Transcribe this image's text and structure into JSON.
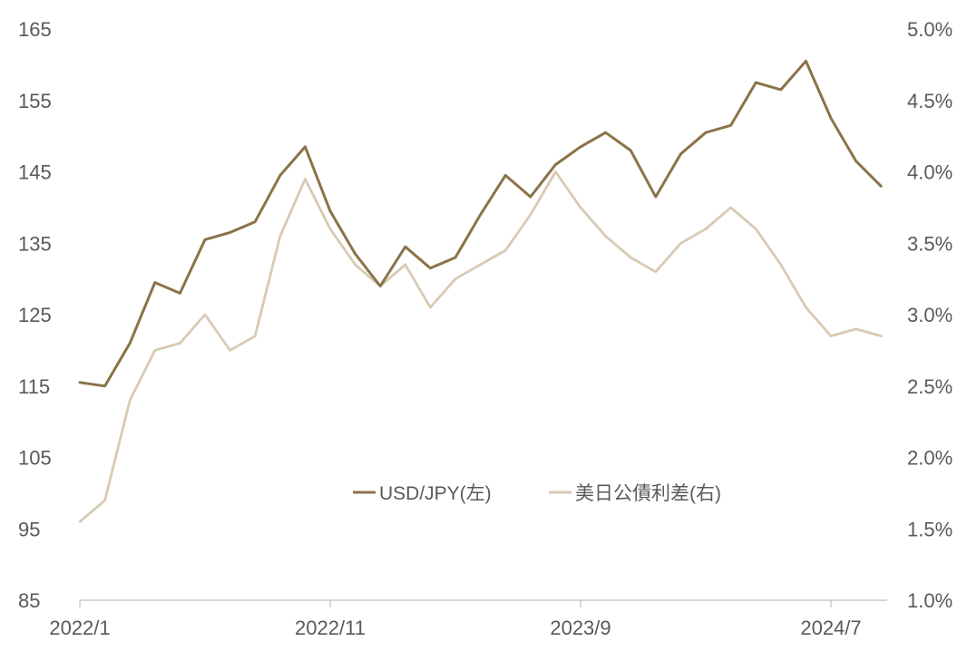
{
  "chart_data": {
    "type": "line",
    "x_axis": {
      "ticks": [
        "2022/1",
        "2022/11",
        "2023/9",
        "2024/7"
      ],
      "range": [
        "2022/1",
        "2024/10"
      ]
    },
    "y_left": {
      "ticks": [
        "165",
        "155",
        "145",
        "135",
        "125",
        "115",
        "105",
        "95",
        "85"
      ],
      "min": 85,
      "max": 165
    },
    "y_right": {
      "ticks": [
        "5.0%",
        "4.5%",
        "4.0%",
        "3.5%",
        "3.0%",
        "2.5%",
        "2.0%",
        "1.5%",
        "1.0%"
      ],
      "min": 1.0,
      "max": 5.0
    },
    "legend_position": "center",
    "grid": false,
    "series": [
      {
        "name": "USD/JPY(左)",
        "axis": "left",
        "color": "#8B7348",
        "points": [
          [
            "2022/1",
            115.5
          ],
          [
            "2022/2",
            115.0
          ],
          [
            "2022/3",
            121.0
          ],
          [
            "2022/4",
            129.5
          ],
          [
            "2022/5",
            128.0
          ],
          [
            "2022/6",
            135.5
          ],
          [
            "2022/7",
            136.5
          ],
          [
            "2022/8",
            138.0
          ],
          [
            "2022/9",
            144.5
          ],
          [
            "2022/10",
            148.5
          ],
          [
            "2022/11",
            139.5
          ],
          [
            "2022/12",
            133.5
          ],
          [
            "2023/1",
            129.0
          ],
          [
            "2023/2",
            134.5
          ],
          [
            "2023/3",
            131.5
          ],
          [
            "2023/4",
            133.0
          ],
          [
            "2023/5",
            139.0
          ],
          [
            "2023/6",
            144.5
          ],
          [
            "2023/7",
            141.5
          ],
          [
            "2023/8",
            146.0
          ],
          [
            "2023/9",
            148.5
          ],
          [
            "2023/10",
            150.5
          ],
          [
            "2023/11",
            148.0
          ],
          [
            "2023/12",
            141.5
          ],
          [
            "2024/1",
            147.5
          ],
          [
            "2024/2",
            150.5
          ],
          [
            "2024/3",
            151.5
          ],
          [
            "2024/4",
            157.5
          ],
          [
            "2024/5",
            156.5
          ],
          [
            "2024/6",
            160.5
          ],
          [
            "2024/7",
            152.5
          ],
          [
            "2024/8",
            146.5
          ],
          [
            "2024/9",
            143.0
          ]
        ]
      },
      {
        "name": "美日公債利差(右)",
        "axis": "right",
        "color": "#D8CAB4",
        "points": [
          [
            "2022/1",
            1.55
          ],
          [
            "2022/2",
            1.7
          ],
          [
            "2022/3",
            2.4
          ],
          [
            "2022/4",
            2.75
          ],
          [
            "2022/5",
            2.8
          ],
          [
            "2022/6",
            3.0
          ],
          [
            "2022/7",
            2.75
          ],
          [
            "2022/8",
            2.85
          ],
          [
            "2022/9",
            3.55
          ],
          [
            "2022/10",
            3.95
          ],
          [
            "2022/11",
            3.6
          ],
          [
            "2022/12",
            3.35
          ],
          [
            "2023/1",
            3.2
          ],
          [
            "2023/2",
            3.35
          ],
          [
            "2023/3",
            3.05
          ],
          [
            "2023/4",
            3.25
          ],
          [
            "2023/5",
            3.35
          ],
          [
            "2023/6",
            3.45
          ],
          [
            "2023/7",
            3.7
          ],
          [
            "2023/8",
            4.0
          ],
          [
            "2023/9",
            3.75
          ],
          [
            "2023/10",
            3.55
          ],
          [
            "2023/11",
            3.4
          ],
          [
            "2023/12",
            3.3
          ],
          [
            "2024/1",
            3.5
          ],
          [
            "2024/2",
            3.6
          ],
          [
            "2024/3",
            3.75
          ],
          [
            "2024/4",
            3.6
          ],
          [
            "2024/5",
            3.35
          ],
          [
            "2024/6",
            3.05
          ],
          [
            "2024/7",
            2.85
          ],
          [
            "2024/8",
            2.9
          ],
          [
            "2024/9",
            2.85
          ]
        ]
      }
    ]
  }
}
